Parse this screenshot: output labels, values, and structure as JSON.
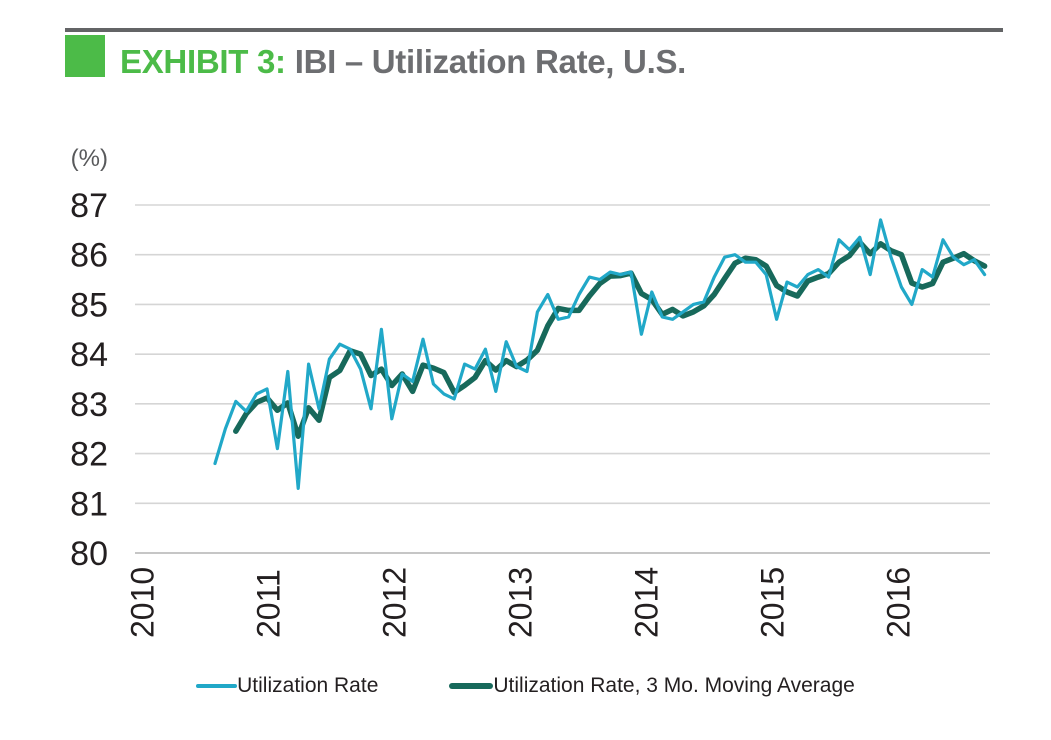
{
  "header": {
    "exhibit_label": "EXHIBIT 3:",
    "title": "IBI – Utilization Rate, U.S.",
    "accent_color": "#4CBB48",
    "title_color": "#6D6E71",
    "rule_color": "#636466"
  },
  "chart_data": {
    "type": "line",
    "title": "IBI – Utilization Rate, U.S.",
    "unit_label": "(%)",
    "ylim": [
      80,
      87
    ],
    "y_ticks": [
      87,
      86,
      85,
      84,
      83,
      82,
      81,
      80
    ],
    "x_ticks": [
      "2010",
      "2011",
      "2012",
      "2013",
      "2014",
      "2015",
      "2016"
    ],
    "x_frequency": "monthly",
    "x_range_start": "2010-08",
    "x_range_end": "2016-10",
    "grid": "horizontal",
    "grid_color": "#D5D5D5",
    "axis_line_color": "#B3B3B3",
    "tick_label_color": "#231F20",
    "unit_label_color": "#58595B",
    "legend_position": "bottom",
    "series": [
      {
        "name": "Utilization Rate",
        "color": "#21A8C8",
        "width": 3.2,
        "values": [
          81.8,
          82.5,
          83.05,
          82.85,
          83.2,
          83.3,
          82.1,
          83.65,
          81.3,
          83.8,
          82.9,
          83.9,
          84.2,
          84.1,
          83.7,
          82.9,
          84.5,
          82.7,
          83.6,
          83.45,
          84.3,
          83.4,
          83.2,
          83.1,
          83.8,
          83.7,
          84.1,
          83.25,
          84.25,
          83.75,
          83.65,
          84.85,
          85.2,
          84.7,
          84.75,
          85.2,
          85.55,
          85.5,
          85.65,
          85.6,
          85.65,
          84.4,
          85.25,
          84.75,
          84.7,
          84.85,
          85.0,
          85.05,
          85.55,
          85.95,
          86.0,
          85.85,
          85.85,
          85.6,
          84.7,
          85.45,
          85.35,
          85.6,
          85.7,
          85.55,
          86.3,
          86.1,
          86.35,
          85.6,
          86.7,
          85.95,
          85.35,
          85.0,
          85.7,
          85.55,
          86.3,
          85.95,
          85.8,
          85.9,
          85.6
        ]
      },
      {
        "name": "Utilization Rate, 3 Mo. Moving Average",
        "color": "#17695B",
        "width": 5.5,
        "values": [
          null,
          null,
          82.45,
          82.8,
          83.03,
          83.12,
          82.87,
          83.02,
          82.35,
          82.92,
          82.67,
          83.53,
          83.67,
          84.07,
          84.0,
          83.57,
          83.7,
          83.37,
          83.6,
          83.25,
          83.78,
          83.72,
          83.63,
          83.23,
          83.37,
          83.53,
          83.87,
          83.68,
          83.87,
          83.75,
          83.88,
          84.08,
          84.57,
          84.92,
          84.88,
          84.88,
          85.17,
          85.42,
          85.57,
          85.58,
          85.63,
          85.22,
          85.1,
          84.8,
          84.9,
          84.77,
          84.85,
          84.97,
          85.2,
          85.52,
          85.83,
          85.93,
          85.9,
          85.77,
          85.38,
          85.25,
          85.17,
          85.47,
          85.55,
          85.62,
          85.85,
          85.98,
          86.25,
          86.02,
          86.22,
          86.08,
          86.0,
          85.43,
          85.35,
          85.42,
          85.85,
          85.93,
          86.02,
          85.88,
          85.77
        ]
      }
    ]
  },
  "legend": {
    "items": [
      {
        "label": "Utilization Rate"
      },
      {
        "label": "Utilization Rate, 3 Mo. Moving Average"
      }
    ]
  }
}
